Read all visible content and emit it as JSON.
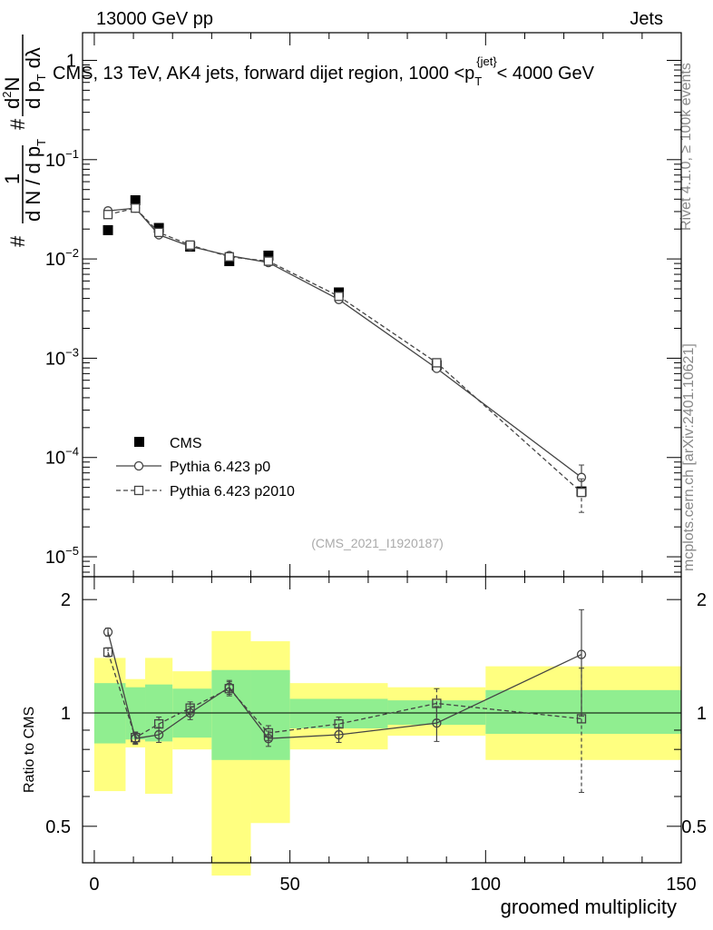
{
  "header": {
    "left": "13000 GeV pp",
    "right": "Jets"
  },
  "side_labels": {
    "rivet": "Rivet 4.1.0, ≥ 100k events",
    "mcplots": "mcplots.cern.ch [arXiv:2401.10621]"
  },
  "colors": {
    "band_outer": "#ffff80",
    "band_inner": "#90ee90",
    "cms": "#000000",
    "mc": "#444444"
  },
  "chart_data": {
    "type": "scatter",
    "title": "CMS, 13 TeV, AK4 jets, forward dijet region, 1000 <p_T^{jet}< 4000 GeV",
    "title_parts": {
      "pre": "CMS, 13 TeV, AK4 jets, forward dijet region, 1000 <p",
      "sub": "T",
      "sup": "{jet}",
      "post": "< 4000 GeV"
    },
    "ylabel_main_parts": {
      "hash1": "#",
      "one": "1",
      "denom": "d N / d p",
      "denom_sub": "T",
      "hash2": "#",
      "num2": "d",
      "num2_sup": "2",
      "num2_rest": "N",
      "den2": "d p",
      "den2_sub": "T",
      "den2_rest": " dλ"
    },
    "analysis_id": "(CMS_2021_I1920187)",
    "xlabel": "groomed multiplicity",
    "ylabel_ratio": "Ratio to CMS",
    "xlim": [
      -3,
      150
    ],
    "xticks": [
      0,
      50,
      100,
      150
    ],
    "ylim_main": [
      6.3e-06,
      1.9
    ],
    "main_tick_labels": [
      {
        "value": 1,
        "base": "1",
        "exp": ""
      },
      {
        "value": 0.1,
        "base": "10",
        "exp": "−1"
      },
      {
        "value": 0.01,
        "base": "10",
        "exp": "−2"
      },
      {
        "value": 0.001,
        "base": "10",
        "exp": "−3"
      },
      {
        "value": 0.0001,
        "base": "10",
        "exp": "−4"
      },
      {
        "value": 1e-05,
        "base": "10",
        "exp": "−5"
      }
    ],
    "ylim_ratio": [
      0.4,
      2.3
    ],
    "ratio_tick_labels": [
      {
        "value": 0.5,
        "label": "0.5"
      },
      {
        "value": 1,
        "label": "1"
      },
      {
        "value": 2,
        "label": "2"
      }
    ],
    "bins": [
      {
        "lo": 0,
        "hi": 8,
        "x": 3.5
      },
      {
        "lo": 8,
        "hi": 13,
        "x": 10.5
      },
      {
        "lo": 13,
        "hi": 20,
        "x": 16.5
      },
      {
        "lo": 20,
        "hi": 30,
        "x": 24.5
      },
      {
        "lo": 30,
        "hi": 40,
        "x": 34.5
      },
      {
        "lo": 40,
        "hi": 50,
        "x": 44.5
      },
      {
        "lo": 50,
        "hi": 75,
        "x": 62.5
      },
      {
        "lo": 75,
        "hi": 100,
        "x": 87.5
      },
      {
        "lo": 100,
        "hi": 150,
        "x": 124.5
      }
    ],
    "legend": {
      "position": "lower-left",
      "entries": [
        "CMS",
        "Pythia 6.423 p0",
        "Pythia 6.423 p2010"
      ]
    },
    "series": [
      {
        "name": "CMS",
        "marker": "filled-square",
        "values": [
          0.0195,
          0.039,
          0.0205,
          0.0133,
          0.0095,
          0.0108,
          0.0046,
          0.00085,
          4.55e-05
        ],
        "band_inner": [
          [
            0.83,
            1.2
          ],
          [
            0.85,
            1.17
          ],
          [
            0.84,
            1.19
          ],
          [
            0.86,
            1.16
          ],
          [
            0.75,
            1.3
          ],
          [
            0.75,
            1.3
          ],
          [
            0.91,
            1.09
          ],
          [
            0.93,
            1.08
          ],
          [
            0.88,
            1.15
          ]
        ],
        "band_outer": [
          [
            0.62,
            1.4
          ],
          [
            0.81,
            1.23
          ],
          [
            0.61,
            1.4
          ],
          [
            0.8,
            1.29
          ],
          [
            0.37,
            1.65
          ],
          [
            0.51,
            1.55
          ],
          [
            0.8,
            1.2
          ],
          [
            0.87,
            1.17
          ],
          [
            0.75,
            1.33
          ]
        ]
      },
      {
        "name": "Pythia 6.423 p0",
        "marker": "open-circle",
        "line": "solid",
        "values": [
          0.0305,
          0.0325,
          0.0175,
          0.0134,
          0.0108,
          0.0092,
          0.0039,
          0.00079,
          6.3e-05
        ],
        "errors": [
          0.0,
          0.0,
          0.0,
          0.0,
          0.0,
          0.0,
          0.0,
          0.0,
          2.1e-05
        ],
        "ratio": [
          1.64,
          0.855,
          0.875,
          1.0,
          1.17,
          0.855,
          0.875,
          0.94,
          1.43
        ],
        "ratio_errors": [
          0.04,
          0.03,
          0.04,
          0.04,
          0.05,
          0.04,
          0.04,
          0.1,
          0.45
        ]
      },
      {
        "name": "Pythia 6.423 p2010",
        "marker": "open-square",
        "line": "dashed",
        "values": [
          0.028,
          0.0325,
          0.0185,
          0.0138,
          0.0105,
          0.0095,
          0.0042,
          0.0009,
          4.45e-05
        ],
        "errors": [
          0.0,
          0.0,
          0.0,
          0.0,
          0.0,
          0.0,
          0.0,
          0.0,
          1.65e-05
        ],
        "ratio": [
          1.45,
          0.86,
          0.935,
          1.03,
          1.16,
          0.885,
          0.935,
          1.06,
          0.965
        ],
        "ratio_errors": [
          0.04,
          0.03,
          0.04,
          0.04,
          0.05,
          0.04,
          0.04,
          0.1,
          0.35
        ]
      }
    ]
  }
}
